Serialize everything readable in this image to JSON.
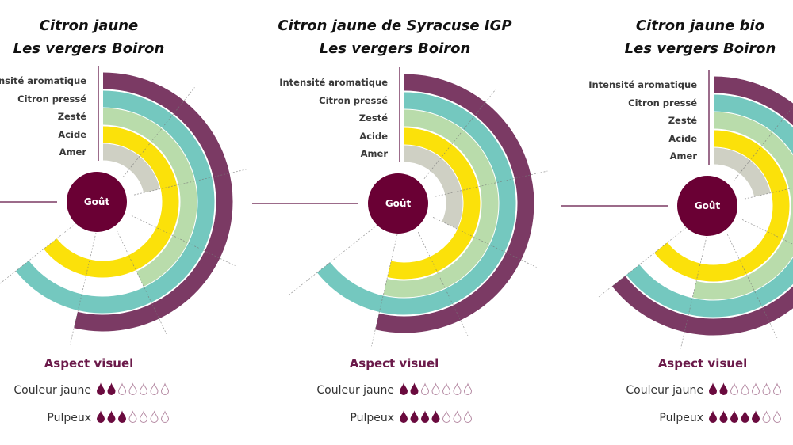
{
  "chart_data": [
    {
      "type": "radial-bar",
      "title": [
        "Citron jaune",
        "Les vergers Boiron"
      ],
      "center_label": "Goût",
      "categories": [
        "Intensité aromatique",
        "Citron pressé",
        "Zesté",
        "Acide",
        "Amer"
      ],
      "values": [
        5,
        6,
        4,
        6,
        2
      ],
      "visual": {
        "heading": "Aspect visuel",
        "rows": [
          {
            "label": "Couleur jaune",
            "value": 2,
            "max": 7
          },
          {
            "label": "Pulpeux",
            "value": 3,
            "max": 7
          }
        ]
      }
    },
    {
      "type": "radial-bar",
      "title": [
        "Citron jaune de Syracuse IGP",
        "Les vergers Boiron"
      ],
      "center_label": "Goût",
      "categories": [
        "Intensité aromatique",
        "Citron pressé",
        "Zesté",
        "Acide",
        "Amer"
      ],
      "values": [
        5,
        6,
        5,
        5,
        3
      ],
      "visual": {
        "heading": "Aspect visuel",
        "rows": [
          {
            "label": "Couleur jaune",
            "value": 2,
            "max": 7
          },
          {
            "label": "Pulpeux",
            "value": 4,
            "max": 7
          }
        ]
      }
    },
    {
      "type": "radial-bar",
      "title": [
        "Citron jaune bio",
        "Les vergers Boiron"
      ],
      "center_label": "Goût",
      "categories": [
        "Intensité aromatique",
        "Citron pressé",
        "Zesté",
        "Acide",
        "Amer"
      ],
      "values": [
        6,
        6,
        5,
        6,
        2
      ],
      "visual": {
        "heading": "Aspect visuel",
        "rows": [
          {
            "label": "Couleur jaune",
            "value": 2,
            "max": 7
          },
          {
            "label": "Pulpeux",
            "value": 5,
            "max": 7
          }
        ]
      }
    }
  ],
  "colors": {
    "Intensité aromatique": "#7b3a64",
    "Citron pressé": "#74c8bf",
    "Zesté": "#b9dcab",
    "Acide": "#fbe10a",
    "Amer": "#cfd0c4",
    "center": "#6a0034",
    "drop": "#6a0a3e"
  },
  "drop_icon": "water-drop-icon"
}
